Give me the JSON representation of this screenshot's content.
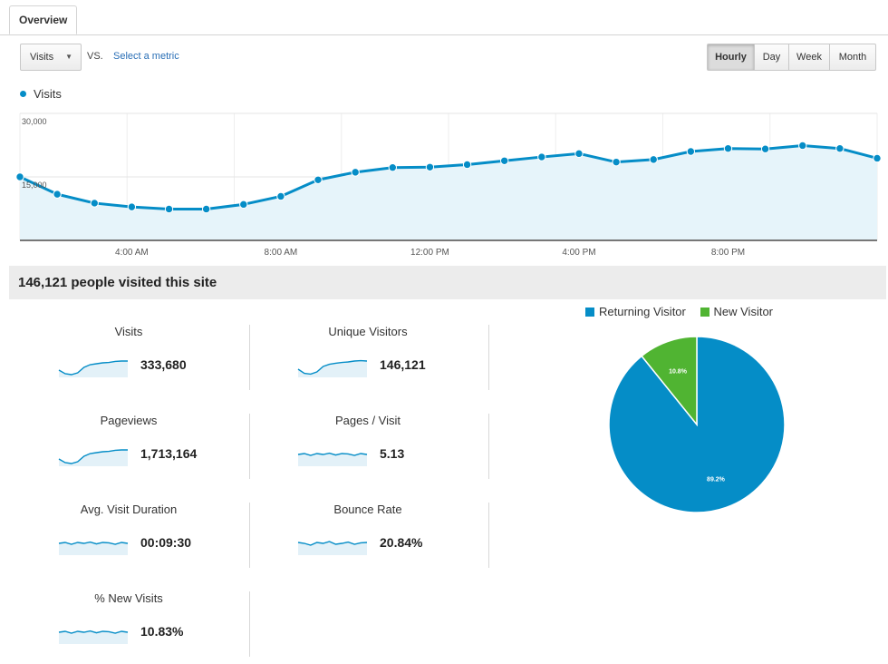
{
  "tabs": [
    {
      "label": "Overview"
    }
  ],
  "controls": {
    "metric_select": "Visits",
    "vs_label": "VS.",
    "select_metric_link": "Select a metric",
    "ranges": [
      "Hourly",
      "Day",
      "Week",
      "Month"
    ],
    "active_range": "Hourly"
  },
  "colors": {
    "visits_line": "#058dc7",
    "area_fill": "#e6f4fa",
    "returning": "#058dc7",
    "new": "#50b432"
  },
  "chart_data": {
    "type": "area",
    "title": "",
    "series": [
      {
        "name": "Visits",
        "x": [
          "1:00 AM",
          "2:00 AM",
          "3:00 AM",
          "4:00 AM",
          "5:00 AM",
          "6:00 AM",
          "7:00 AM",
          "8:00 AM",
          "9:00 AM",
          "10:00 AM",
          "11:00 AM",
          "12:00 PM",
          "1:00 PM",
          "2:00 PM",
          "3:00 PM",
          "4:00 PM",
          "5:00 PM",
          "6:00 PM",
          "7:00 PM",
          "8:00 PM",
          "9:00 PM",
          "10:00 PM",
          "11:00 PM",
          "12:00 AM"
        ],
        "values": [
          15000,
          10900,
          8800,
          7900,
          7400,
          7400,
          8500,
          10400,
          14300,
          16100,
          17200,
          17300,
          17900,
          18800,
          19700,
          20500,
          18500,
          19100,
          21000,
          21700,
          21600,
          22400,
          21700,
          19400
        ]
      }
    ],
    "y_ticks": [
      "30,000",
      "15,000"
    ],
    "x_ticks": [
      "4:00 AM",
      "8:00 AM",
      "12:00 PM",
      "4:00 PM",
      "8:00 PM"
    ],
    "ylim": [
      0,
      30000
    ],
    "grid": true
  },
  "summary": {
    "headline": "146,121 people visited this site"
  },
  "metrics": [
    {
      "label": "Visits",
      "value": "333,680"
    },
    {
      "label": "Unique Visitors",
      "value": "146,121"
    },
    {
      "label": "Pageviews",
      "value": "1,713,164"
    },
    {
      "label": "Pages / Visit",
      "value": "5.13"
    },
    {
      "label": "Avg. Visit Duration",
      "value": "00:09:30"
    },
    {
      "label": "Bounce Rate",
      "value": "20.84%"
    },
    {
      "label": "% New Visits",
      "value": "10.83%"
    }
  ],
  "pie": {
    "legend": [
      "Returning Visitor",
      "New Visitor"
    ],
    "slices": [
      {
        "name": "Returning Visitor",
        "value": 89.2,
        "label": "89.2%"
      },
      {
        "name": "New Visitor",
        "value": 10.8,
        "label": "10.8%"
      }
    ]
  }
}
